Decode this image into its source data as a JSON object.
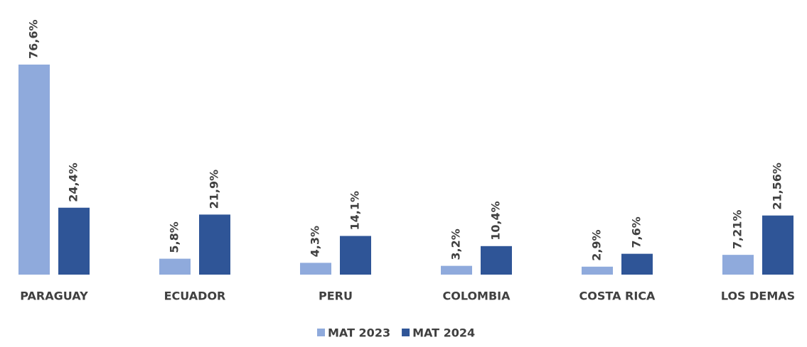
{
  "chart_data": {
    "type": "bar",
    "categories": [
      "PARAGUAY",
      "ECUADOR",
      "PERU",
      "COLOMBIA",
      "COSTA RICA",
      "LOS DEMAS"
    ],
    "series": [
      {
        "name": "MAT 2023",
        "color": "#8faadc",
        "values": [
          76.6,
          5.8,
          4.3,
          3.2,
          2.9,
          7.21
        ],
        "value_labels": [
          "76,6%",
          "5,8%",
          "4,3%",
          "3,2%",
          "2,9%",
          "7,21%"
        ]
      },
      {
        "name": "MAT 2024",
        "color": "#2f5597",
        "values": [
          24.4,
          21.9,
          14.1,
          10.4,
          7.6,
          21.56
        ],
        "value_labels": [
          "24,4%",
          "21,9%",
          "14,1%",
          "10,4%",
          "7,6%",
          "21,56%"
        ]
      }
    ],
    "legend": "bottom"
  }
}
